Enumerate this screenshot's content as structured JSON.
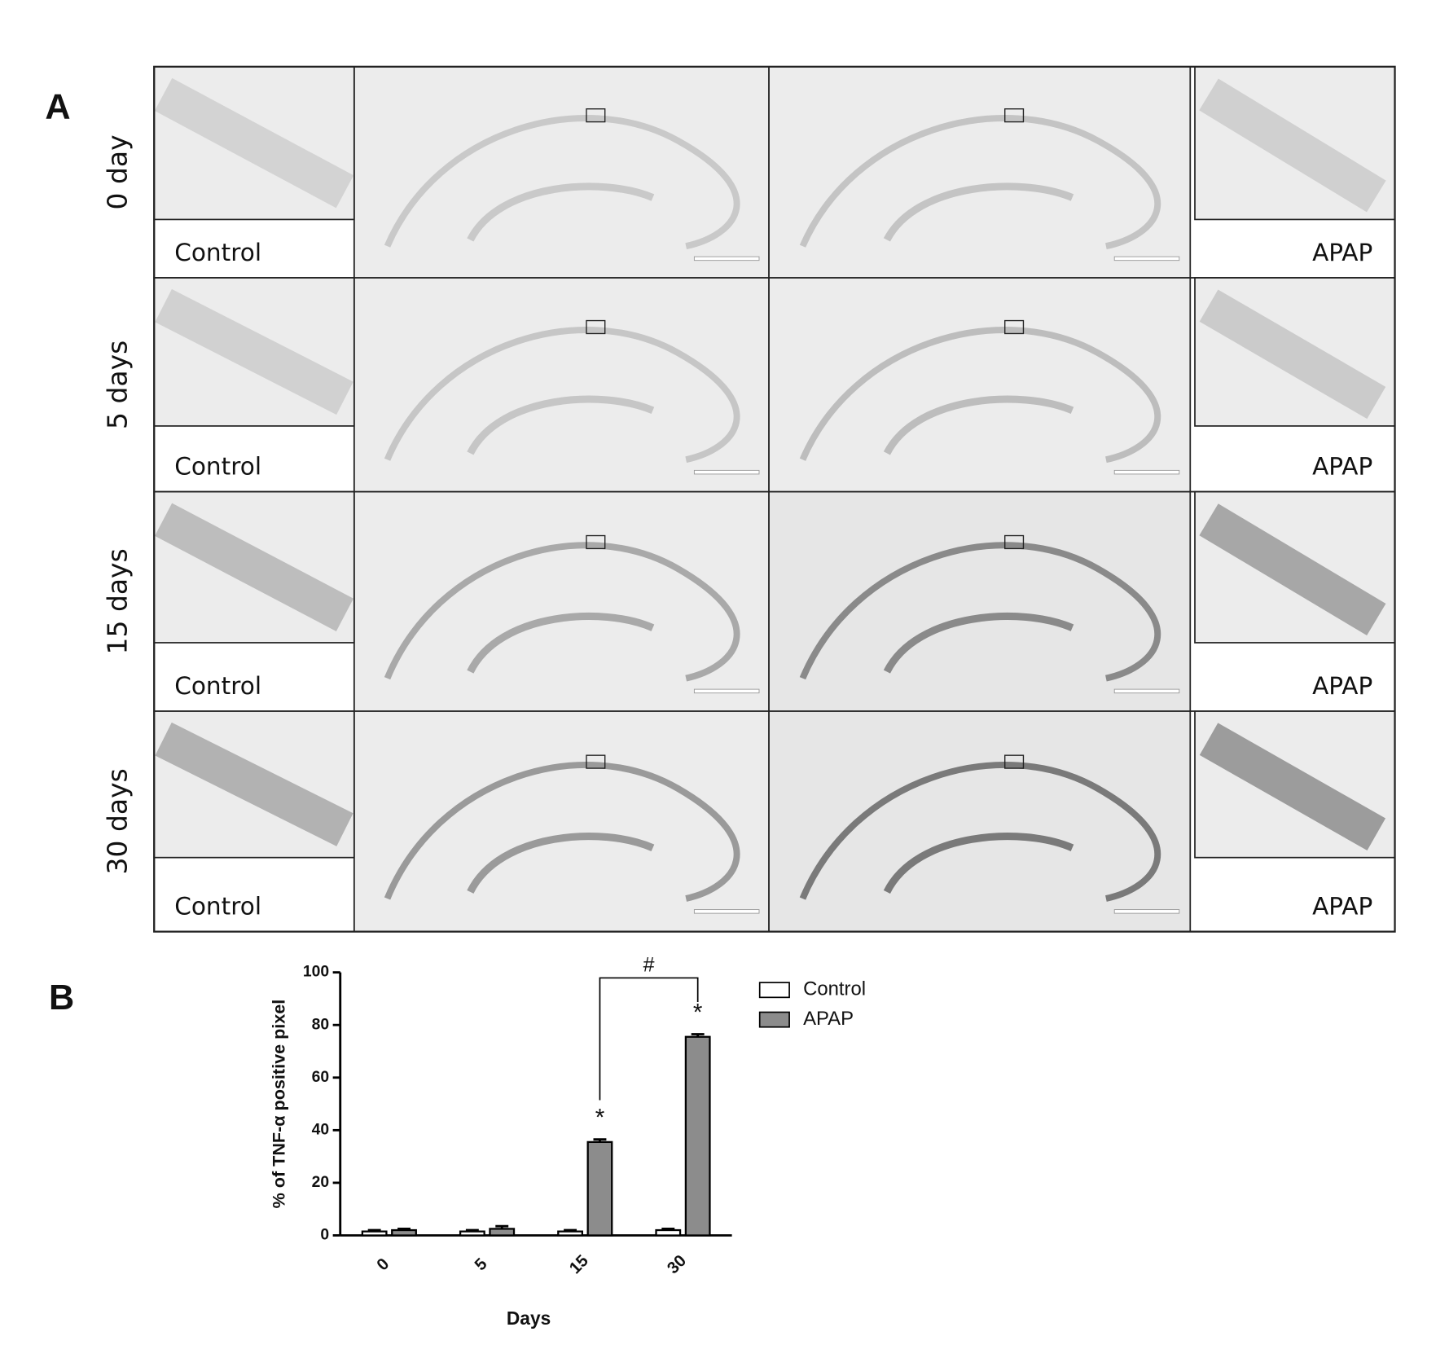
{
  "panel_a": {
    "label": "A",
    "rows": [
      {
        "label": "0 day",
        "left": "Control",
        "right": "APAP"
      },
      {
        "label": "5 days",
        "left": "Control",
        "right": "APAP"
      },
      {
        "label": "15 days",
        "left": "Control",
        "right": "APAP"
      },
      {
        "label": "30 days",
        "left": "Control",
        "right": "APAP"
      }
    ]
  },
  "panel_b": {
    "label": "B"
  },
  "chart_data": {
    "type": "bar",
    "y_label": "% of TNF-α positive pixel",
    "x_label": "Days",
    "categories": [
      "0",
      "5",
      "15",
      "30"
    ],
    "series": [
      {
        "name": "Control",
        "color": "#ffffff",
        "values": [
          1.5,
          1.5,
          1.5,
          2
        ],
        "errors": [
          0.5,
          0.5,
          0.5,
          0.5
        ]
      },
      {
        "name": "APAP",
        "color": "#8c8c8c",
        "values": [
          2,
          2.5,
          35.5,
          75.5
        ],
        "errors": [
          0.5,
          1,
          1,
          1
        ]
      }
    ],
    "ylim": [
      0,
      100
    ],
    "yticks": [
      0,
      20,
      40,
      60,
      80,
      100
    ],
    "annotations": [
      "*",
      "*",
      "#"
    ]
  }
}
